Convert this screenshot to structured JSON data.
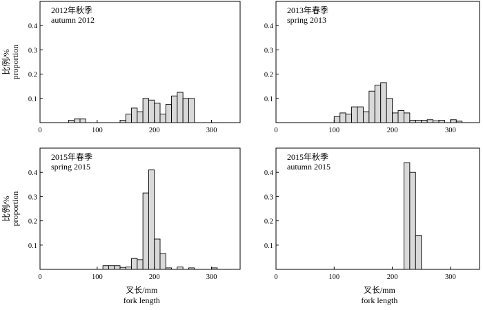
{
  "chart_data": [
    {
      "type": "bar",
      "title": "2012年秋季",
      "subtitle": "autumn 2012",
      "ylabel": "比例/%",
      "ylabel_en": "proportion",
      "xlabel": "",
      "xlabel_en": "",
      "xlim": [
        0,
        350
      ],
      "ylim": [
        0,
        0.5
      ],
      "xticks": [
        0,
        100,
        200,
        300
      ],
      "yticks": [
        0.1,
        0.2,
        0.3,
        0.4
      ],
      "bin_width": 10,
      "x": [
        50,
        60,
        70,
        140,
        150,
        160,
        170,
        180,
        190,
        200,
        210,
        220,
        230,
        240,
        250,
        260
      ],
      "values": [
        0.01,
        0.015,
        0.015,
        0.01,
        0.035,
        0.06,
        0.045,
        0.1,
        0.093,
        0.08,
        0.035,
        0.075,
        0.11,
        0.125,
        0.1,
        0.1
      ]
    },
    {
      "type": "bar",
      "title": "2013年春季",
      "subtitle": "spring 2013",
      "ylabel": "",
      "ylabel_en": "",
      "xlabel": "",
      "xlabel_en": "",
      "xlim": [
        0,
        350
      ],
      "ylim": [
        0,
        0.5
      ],
      "xticks": [
        0,
        100,
        200,
        300
      ],
      "yticks": [
        0.1,
        0.2,
        0.3,
        0.4
      ],
      "bin_width": 10,
      "x": [
        100,
        110,
        120,
        130,
        140,
        150,
        160,
        170,
        180,
        190,
        200,
        210,
        220,
        230,
        240,
        250,
        260,
        270,
        280,
        300,
        310
      ],
      "values": [
        0.025,
        0.04,
        0.035,
        0.065,
        0.065,
        0.045,
        0.13,
        0.155,
        0.165,
        0.1,
        0.04,
        0.05,
        0.04,
        0.01,
        0.01,
        0.01,
        0.012,
        0.007,
        0.01,
        0.012,
        0.006
      ]
    },
    {
      "type": "bar",
      "title": "2015年春季",
      "subtitle": "spring 2015",
      "ylabel": "比例/%",
      "ylabel_en": "proportion",
      "xlabel": "叉长/mm",
      "xlabel_en": "fork length",
      "xlim": [
        0,
        350
      ],
      "ylim": [
        0,
        0.5
      ],
      "xticks": [
        0,
        100,
        200,
        300
      ],
      "yticks": [
        0.1,
        0.2,
        0.3,
        0.4
      ],
      "bin_width": 10,
      "x": [
        110,
        120,
        130,
        140,
        150,
        160,
        170,
        180,
        190,
        200,
        210,
        220,
        240,
        260,
        300
      ],
      "values": [
        0.015,
        0.015,
        0.015,
        0.008,
        0.01,
        0.045,
        0.04,
        0.315,
        0.41,
        0.125,
        0.065,
        0.006,
        0.01,
        0.006,
        0.006
      ]
    },
    {
      "type": "bar",
      "title": "2015年秋季",
      "subtitle": "autumn 2015",
      "ylabel": "",
      "ylabel_en": "",
      "xlabel": "叉长/mm",
      "xlabel_en": "fork length",
      "xlim": [
        0,
        350
      ],
      "ylim": [
        0,
        0.5
      ],
      "xticks": [
        0,
        100,
        200,
        300
      ],
      "yticks": [
        0.1,
        0.2,
        0.3,
        0.4
      ],
      "bin_width": 10,
      "x": [
        220,
        230,
        240
      ],
      "values": [
        0.44,
        0.4,
        0.14
      ]
    }
  ],
  "colors": {
    "bar_fill": "#d9d9d9",
    "bar_stroke": "#000000",
    "axis": "#000000"
  }
}
